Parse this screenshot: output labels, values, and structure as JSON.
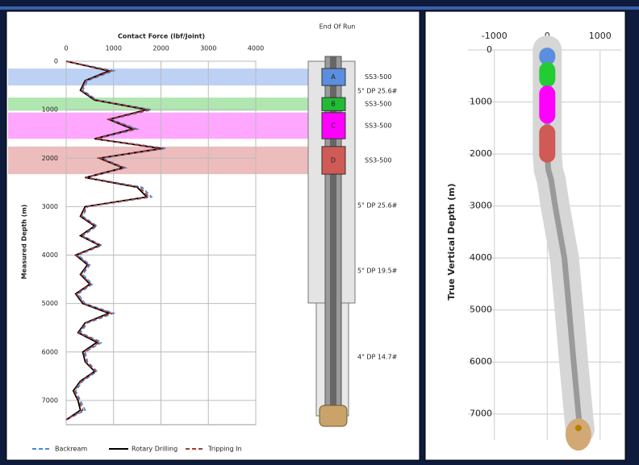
{
  "chart_data": [
    {
      "type": "line",
      "title": "Contact Force (lbf/Joint)",
      "y_label": "Measured Depth (m)",
      "x": [
        0,
        200,
        400,
        600,
        800,
        1000,
        1200,
        1400,
        1600,
        1800,
        2000,
        2200,
        2400,
        2600,
        2800,
        3000,
        3200,
        3400,
        3600,
        3800,
        4000,
        4200,
        4400,
        4600,
        4800,
        5000,
        5200,
        5400,
        5600,
        5800,
        6000,
        6200,
        6400,
        6600,
        6800,
        7000,
        7200,
        7400
      ],
      "xlim": [
        0,
        7500
      ],
      "xticks": [
        0,
        1000,
        2000,
        3000,
        4000,
        5000,
        6000,
        7000
      ],
      "ylim": [
        0,
        4000
      ],
      "yticks": [
        0,
        1000,
        2000,
        3000,
        4000
      ],
      "grid": true,
      "series": [
        {
          "name": "Backream",
          "color": "#4a8ad8",
          "dash": "dashed",
          "values": [
            0,
            1000,
            450,
            350,
            650,
            1800,
            950,
            1500,
            650,
            2100,
            750,
            1250,
            450,
            1600,
            1800,
            450,
            350,
            650,
            350,
            750,
            250,
            500,
            350,
            550,
            250,
            400,
            1000,
            450,
            300,
            750,
            400,
            450,
            650,
            350,
            200,
            300,
            400,
            0
          ]
        },
        {
          "name": "Rotary Drilling",
          "color": "#000000",
          "dash": "solid",
          "values": [
            0,
            900,
            400,
            300,
            600,
            1700,
            900,
            1400,
            600,
            2000,
            700,
            1200,
            400,
            1500,
            1700,
            400,
            300,
            600,
            300,
            700,
            200,
            450,
            300,
            500,
            200,
            350,
            900,
            400,
            250,
            650,
            350,
            400,
            600,
            300,
            150,
            250,
            300,
            0
          ]
        },
        {
          "name": "Tripping In",
          "color": "#a83a32",
          "dash": "dashed",
          "values": [
            0,
            950,
            420,
            320,
            620,
            1750,
            920,
            1450,
            620,
            2050,
            720,
            1220,
            420,
            1550,
            1750,
            420,
            320,
            620,
            320,
            720,
            220,
            470,
            320,
            520,
            220,
            370,
            950,
            420,
            270,
            700,
            370,
            420,
            620,
            320,
            170,
            270,
            350,
            0
          ]
        }
      ],
      "drill_string": {
        "title": "End Of Run",
        "stabilizers": [
          {
            "label": "A",
            "name": "SS3-500",
            "top": 150,
            "bottom": 500,
            "color": "#5b8fde",
            "band": "#9fbdf0"
          },
          {
            "label": "B",
            "name": "SS3-500",
            "top": 750,
            "bottom": 1020,
            "color": "#22bb33",
            "band": "#8fdc8f"
          },
          {
            "label": "C",
            "name": "SS3-500",
            "top": 1060,
            "bottom": 1600,
            "color": "#ff00ff",
            "band": "#ff80ff"
          },
          {
            "label": "D",
            "name": "SS3-500",
            "top": 1760,
            "bottom": 2330,
            "color": "#d05a55",
            "band": "#e6a0a0"
          }
        ],
        "pipe_labels": [
          "5\" DP 25.6#",
          "5\" DP 25.6#",
          "5\" DP 19.5#",
          "4\" DP 14.7#"
        ]
      }
    },
    {
      "type": "line",
      "y_label": "True Vertical Depth (m)",
      "x": [
        0,
        0,
        0,
        0,
        20,
        75,
        150,
        325,
        415,
        500,
        590,
        620
      ],
      "values": [
        0,
        500,
        1000,
        2000,
        2300,
        2500,
        3000,
        4000,
        5000,
        6000,
        7000,
        7300
      ],
      "xlim": [
        -1500,
        1400
      ],
      "xticks": [
        -1000,
        0,
        1000
      ],
      "ylim": [
        0,
        7500
      ],
      "yticks": [
        0,
        1000,
        2000,
        3000,
        4000,
        5000,
        6000,
        7000
      ],
      "grid": true,
      "sections": [
        {
          "top": 0,
          "bottom": 250,
          "color": "#5b8fde"
        },
        {
          "top": 250,
          "bottom": 700,
          "color": "#22cc33"
        },
        {
          "top": 700,
          "bottom": 1400,
          "color": "#ff00ff"
        },
        {
          "top": 1450,
          "bottom": 2150,
          "color": "#d05a55"
        }
      ],
      "bit_color": "#d2a874"
    }
  ]
}
